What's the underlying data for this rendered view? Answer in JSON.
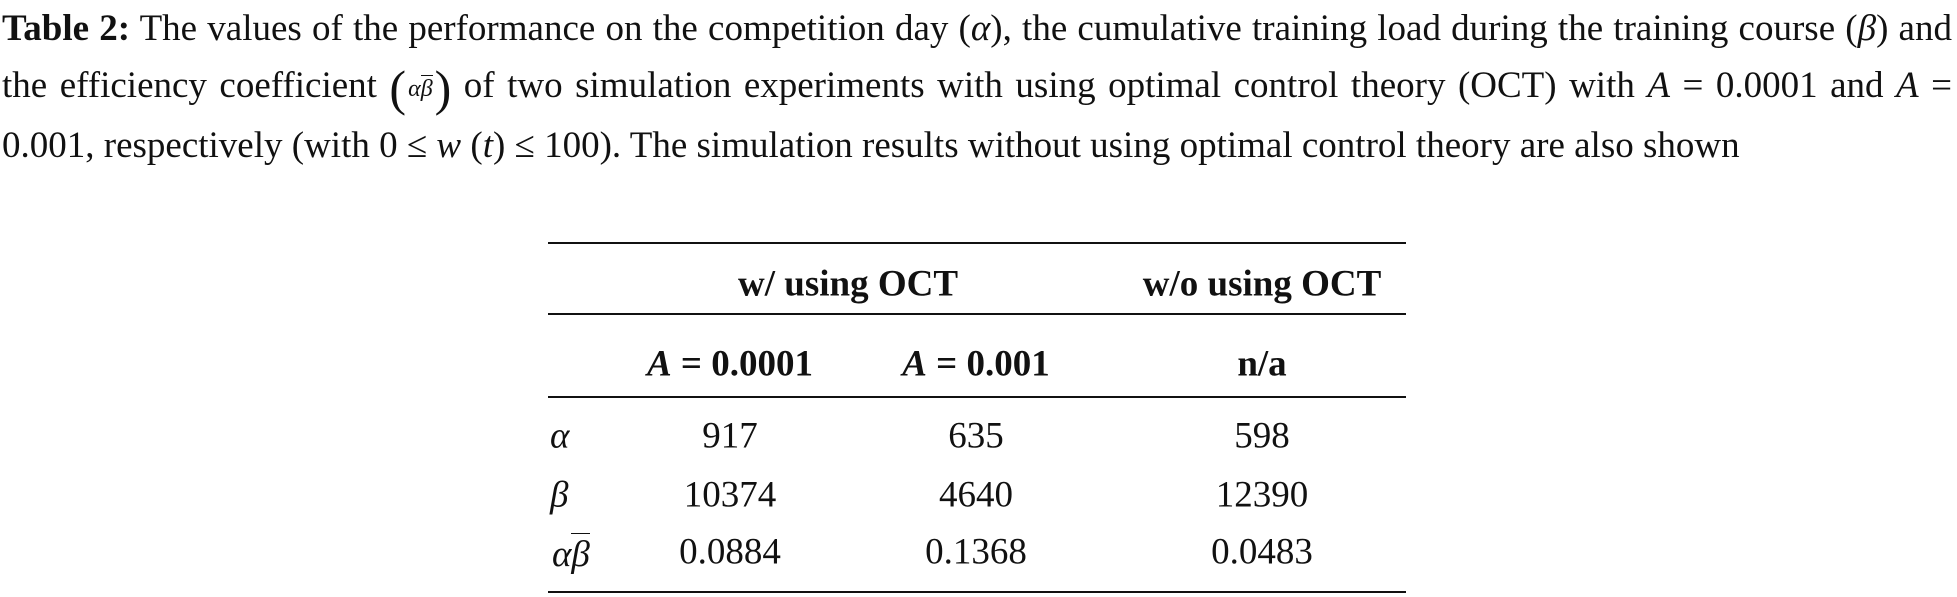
{
  "caption": {
    "label": "Table 2:",
    "parts": [
      "The values of the performance on the competition day (",
      "α",
      "), the cumulative training load during the training course (",
      "β",
      ") and the efficiency coefficient ",
      "α",
      "β",
      " of two simulation experiments with using optimal control theory (OCT) with ",
      "A",
      " = 0.0001 and ",
      "A",
      " = 0.001, respectively (with 0 ≤ ",
      "w",
      " (",
      "t",
      ") ≤ 100). The simulation results without using optimal control theory are also shown"
    ]
  },
  "table": {
    "group_headers": [
      "w/ using OCT",
      "w/o using OCT"
    ],
    "sub_headers": [
      [
        "A",
        "= 0.0001"
      ],
      [
        "A",
        "= 0.001"
      ],
      [
        "n/a"
      ]
    ],
    "rows": [
      {
        "label": [
          "α"
        ],
        "values": [
          "917",
          "635",
          "598"
        ]
      },
      {
        "label": [
          "β"
        ],
        "values": [
          "10374",
          "4640",
          "12390"
        ]
      },
      {
        "label": [
          "α",
          "β"
        ],
        "values": [
          "0.0884",
          "0.1368",
          "0.0483"
        ]
      }
    ]
  }
}
